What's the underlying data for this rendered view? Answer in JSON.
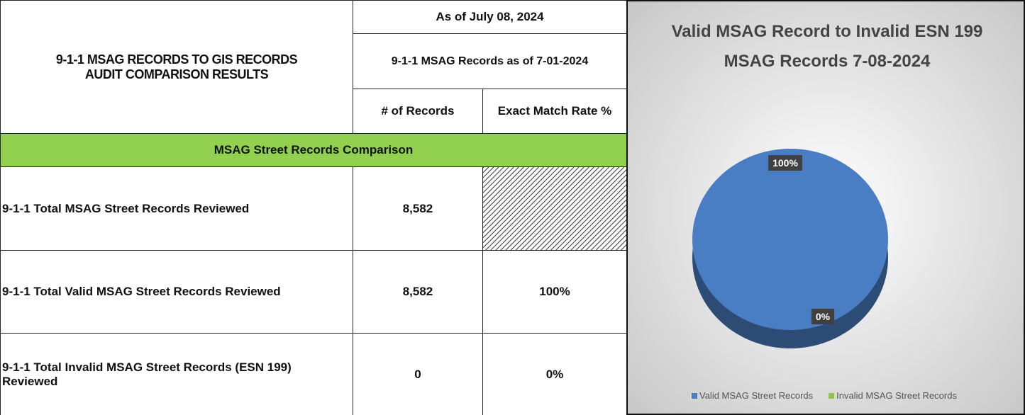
{
  "table": {
    "title_lines": [
      "9-1-1 MSAG RECORDS TO GIS RECORDS",
      "AUDIT COMPARISON RESULTS"
    ],
    "as_of": "As of July 08, 2024",
    "records_as_of": "9-1-1 MSAG Records as of 7-01-2024",
    "columns": [
      "# of Records",
      "Exact Match Rate %"
    ],
    "section": "MSAG Street Records Comparison",
    "rows": [
      [
        "9-1-1 Total MSAG Street Records Reviewed",
        "8,582"
      ],
      [
        "9-1-1 Total Valid MSAG Street Records Reviewed",
        "8,582",
        "100%"
      ],
      [
        "9-1-1 Total Invalid MSAG Street Records (ESN 199) Reviewed",
        "0",
        "0%"
      ]
    ]
  },
  "chart_data": {
    "type": "pie",
    "title_lines": [
      "Valid MSAG Record to Invalid ESN 199",
      "MSAG Records 7-08-2024"
    ],
    "categories": [
      "Valid MSAG Street Records",
      "Invalid MSAG Street Records"
    ],
    "values": [
      100,
      0
    ],
    "value_labels": [
      "100%",
      "0%"
    ],
    "colors": [
      "#4a7ec4",
      "#92c244"
    ],
    "legend": "bottom"
  }
}
